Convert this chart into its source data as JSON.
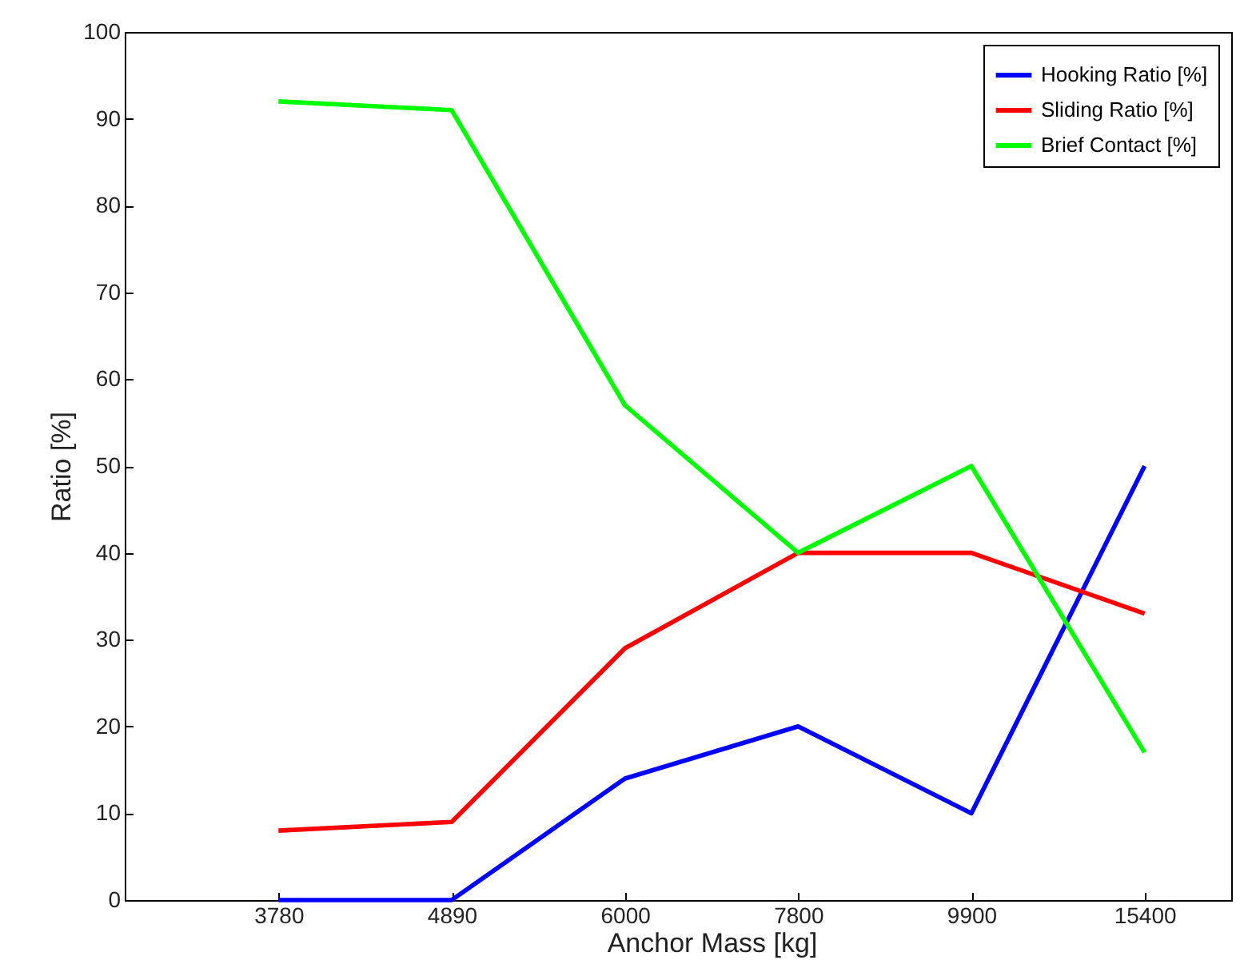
{
  "chart_data": {
    "type": "line",
    "xlabel": "Anchor Mass [kg]",
    "ylabel": "Ratio [%]",
    "categories": [
      "3780",
      "4890",
      "6000",
      "7800",
      "9900",
      "15400"
    ],
    "series": [
      {
        "name": "Hooking Ratio [%]",
        "color": "#0000ff",
        "values": [
          0,
          0,
          14,
          20,
          10,
          50
        ]
      },
      {
        "name": "Sliding Ratio [%]",
        "color": "#ff0000",
        "values": [
          8,
          9,
          29,
          40,
          40,
          33
        ]
      },
      {
        "name": "Brief Contact [%]",
        "color": "#00ff00",
        "values": [
          92,
          91,
          57,
          40,
          50,
          17
        ]
      }
    ],
    "ylim": [
      0,
      100
    ],
    "yticks": [
      0,
      10,
      20,
      30,
      40,
      50,
      60,
      70,
      80,
      90,
      100
    ],
    "grid": false,
    "legend": "top right",
    "line_style": "solid",
    "marker": "none"
  }
}
